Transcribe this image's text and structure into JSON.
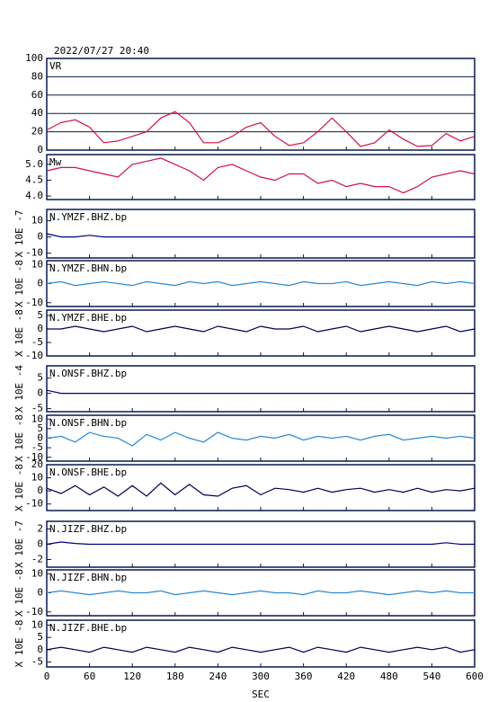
{
  "chart_data": [
    {
      "type": "line",
      "title": "2022/07/27 20:40",
      "label": "VR",
      "xlim": [
        0,
        600
      ],
      "ylim": [
        0,
        100
      ],
      "yticks": [
        0,
        20,
        40,
        60,
        80,
        100
      ],
      "grid": true,
      "color": "#d0104c",
      "x": [
        0,
        20,
        40,
        60,
        80,
        100,
        120,
        140,
        160,
        180,
        200,
        220,
        240,
        260,
        280,
        300,
        320,
        340,
        360,
        380,
        400,
        420,
        440,
        460,
        480,
        500,
        520,
        540,
        560,
        580,
        600
      ],
      "values": [
        22,
        30,
        33,
        25,
        8,
        10,
        15,
        20,
        35,
        42,
        30,
        8,
        8,
        15,
        25,
        30,
        15,
        5,
        8,
        20,
        35,
        20,
        4,
        8,
        22,
        12,
        4,
        5,
        18,
        10,
        15
      ]
    },
    {
      "type": "line",
      "label": "Mw",
      "xlim": [
        0,
        600
      ],
      "ylim": [
        3.89,
        5.31
      ],
      "yticks": [
        {
          "value": 4,
          "label": "4.0"
        },
        {
          "value": 4.5,
          "label": "4.5"
        },
        {
          "value": 5,
          "label": "5.0"
        }
      ],
      "grid": false,
      "color": "#d0104c",
      "x": [
        0,
        20,
        40,
        60,
        80,
        100,
        120,
        140,
        160,
        180,
        200,
        220,
        240,
        260,
        280,
        300,
        320,
        340,
        360,
        380,
        400,
        420,
        440,
        460,
        480,
        500,
        520,
        540,
        560,
        580,
        600
      ],
      "values": [
        4.8,
        4.9,
        4.9,
        4.8,
        4.7,
        4.6,
        5.0,
        5.1,
        5.2,
        5.0,
        4.8,
        4.5,
        4.9,
        5.0,
        4.8,
        4.6,
        4.5,
        4.7,
        4.7,
        4.4,
        4.5,
        4.3,
        4.4,
        4.3,
        4.3,
        4.1,
        4.3,
        4.6,
        4.7,
        4.8,
        4.7
      ]
    },
    {
      "type": "line",
      "label": "N.YMZF.BHZ.bp",
      "ylabel": "X 10E -7",
      "xlim": [
        0,
        600
      ],
      "ylim": [
        -13,
        17
      ],
      "yticks": [
        10,
        0,
        -10
      ],
      "grid": false,
      "color": "#000080",
      "x": [
        0,
        20,
        40,
        60,
        80,
        100,
        120,
        140,
        160,
        180,
        200,
        220,
        240,
        260,
        280,
        300,
        320,
        340,
        360,
        380,
        400,
        420,
        440,
        460,
        480,
        500,
        520,
        540,
        560,
        580,
        600
      ],
      "values": [
        2,
        0,
        0,
        1,
        0,
        0,
        0,
        0,
        0,
        0,
        0,
        0,
        0,
        0,
        0,
        0,
        0,
        0,
        0,
        0,
        0,
        0,
        0,
        0,
        0,
        0,
        0,
        0,
        0,
        0,
        0
      ]
    },
    {
      "type": "line",
      "label": "N.YMZF.BHN.bp",
      "ylabel": "X 10E -8",
      "xlim": [
        0,
        600
      ],
      "ylim": [
        -12,
        12
      ],
      "yticks": [
        10,
        0,
        -10
      ],
      "grid": false,
      "color": "#2a8ad4",
      "x": [
        0,
        20,
        40,
        60,
        80,
        100,
        120,
        140,
        160,
        180,
        200,
        220,
        240,
        260,
        280,
        300,
        320,
        340,
        360,
        380,
        400,
        420,
        440,
        460,
        480,
        500,
        520,
        540,
        560,
        580,
        600
      ],
      "values": [
        0,
        1,
        -1,
        0,
        1,
        0,
        -1,
        1,
        0,
        -1,
        1,
        0,
        1,
        -1,
        0,
        1,
        0,
        -1,
        1,
        0,
        0,
        1,
        -1,
        0,
        1,
        0,
        -1,
        1,
        0,
        1,
        0
      ]
    },
    {
      "type": "line",
      "label": "N.YMZF.BHE.bp",
      "ylabel": "X 10E -8",
      "xlim": [
        0,
        600
      ],
      "ylim": [
        -10,
        7
      ],
      "yticks": [
        5,
        0,
        -5,
        -10
      ],
      "grid": false,
      "color": "#000050",
      "x": [
        0,
        20,
        40,
        60,
        80,
        100,
        120,
        140,
        160,
        180,
        200,
        220,
        240,
        260,
        280,
        300,
        320,
        340,
        360,
        380,
        400,
        420,
        440,
        460,
        480,
        500,
        520,
        540,
        560,
        580,
        600
      ],
      "values": [
        0,
        0,
        1,
        0,
        -1,
        0,
        1,
        -1,
        0,
        1,
        0,
        -1,
        1,
        0,
        -1,
        1,
        0,
        0,
        1,
        -1,
        0,
        1,
        -1,
        0,
        1,
        0,
        -1,
        0,
        1,
        -1,
        0
      ]
    },
    {
      "type": "line",
      "label": "N.ONSF.BHZ.bp",
      "ylabel": "X 10E -4",
      "xlim": [
        0,
        600
      ],
      "ylim": [
        -6,
        9
      ],
      "yticks": [
        5,
        0,
        -5
      ],
      "grid": false,
      "color": "#000080",
      "x": [
        0,
        20,
        40,
        60,
        80,
        100,
        120,
        140,
        160,
        180,
        200,
        220,
        240,
        260,
        280,
        300,
        320,
        340,
        360,
        380,
        400,
        420,
        440,
        460,
        480,
        500,
        520,
        540,
        560,
        580,
        600
      ],
      "values": [
        1,
        0,
        0,
        0,
        0,
        0,
        0,
        0,
        0,
        0,
        0,
        0,
        0,
        0,
        0,
        0,
        0,
        0,
        0,
        0,
        0,
        0,
        0,
        0,
        0,
        0,
        0,
        0,
        0,
        0,
        0
      ]
    },
    {
      "type": "line",
      "label": "N.ONSF.BHN.bp",
      "ylabel": "X 10E -8",
      "xlim": [
        0,
        600
      ],
      "ylim": [
        -12,
        12
      ],
      "yticks": [
        10,
        5,
        0,
        -5,
        -10
      ],
      "grid": false,
      "color": "#2a8ad4",
      "x": [
        0,
        20,
        40,
        60,
        80,
        100,
        120,
        140,
        160,
        180,
        200,
        220,
        240,
        260,
        280,
        300,
        320,
        340,
        360,
        380,
        400,
        420,
        440,
        460,
        480,
        500,
        520,
        540,
        560,
        580,
        600
      ],
      "values": [
        0,
        1,
        -2,
        3,
        1,
        0,
        -4,
        2,
        -1,
        3,
        0,
        -2,
        3,
        0,
        -1,
        1,
        0,
        2,
        -1,
        1,
        0,
        1,
        -1,
        1,
        2,
        -1,
        0,
        1,
        0,
        1,
        0
      ]
    },
    {
      "type": "line",
      "label": "N.ONSF.BHE.bp",
      "ylabel": "X 10E -8",
      "xlim": [
        0,
        600
      ],
      "ylim": [
        -15,
        20
      ],
      "yticks": [
        20,
        10,
        0,
        -10
      ],
      "grid": false,
      "color": "#000050",
      "x": [
        0,
        20,
        40,
        60,
        80,
        100,
        120,
        140,
        160,
        180,
        200,
        220,
        240,
        260,
        280,
        300,
        320,
        340,
        360,
        380,
        400,
        420,
        440,
        460,
        480,
        500,
        520,
        540,
        560,
        580,
        600
      ],
      "values": [
        2,
        -2,
        4,
        -3,
        3,
        -4,
        4,
        -4,
        6,
        -3,
        5,
        -3,
        -4,
        2,
        4,
        -3,
        2,
        1,
        -1,
        2,
        -1,
        1,
        2,
        -1,
        1,
        -1,
        2,
        -1,
        1,
        0,
        2
      ]
    },
    {
      "type": "line",
      "label": "N.JIZF.BHZ.bp",
      "ylabel": "X 10E -7",
      "xlim": [
        0,
        600
      ],
      "ylim": [
        -3,
        3
      ],
      "yticks": [
        2,
        0,
        -2
      ],
      "grid": false,
      "color": "#000080",
      "x": [
        0,
        20,
        40,
        60,
        80,
        100,
        120,
        140,
        160,
        180,
        200,
        220,
        240,
        260,
        280,
        300,
        320,
        340,
        360,
        380,
        400,
        420,
        440,
        460,
        480,
        500,
        520,
        540,
        560,
        580,
        600
      ],
      "values": [
        0,
        0.3,
        0.1,
        0,
        0,
        0,
        0,
        0,
        0,
        0,
        0,
        0,
        0,
        0,
        0,
        0,
        0,
        0,
        0,
        0,
        0,
        0,
        0,
        0,
        0,
        0,
        0,
        0,
        0.2,
        0,
        0
      ]
    },
    {
      "type": "line",
      "label": "N.JIZF.BHN.bp",
      "ylabel": "X 10E -8",
      "xlim": [
        0,
        600
      ],
      "ylim": [
        -12,
        12
      ],
      "yticks": [
        10,
        0,
        -10
      ],
      "grid": false,
      "color": "#2a8ad4",
      "x": [
        0,
        20,
        40,
        60,
        80,
        100,
        120,
        140,
        160,
        180,
        200,
        220,
        240,
        260,
        280,
        300,
        320,
        340,
        360,
        380,
        400,
        420,
        440,
        460,
        480,
        500,
        520,
        540,
        560,
        580,
        600
      ],
      "values": [
        0,
        1,
        0,
        -1,
        0,
        1,
        0,
        0,
        1,
        -1,
        0,
        1,
        0,
        -1,
        0,
        1,
        0,
        0,
        -1,
        1,
        0,
        0,
        1,
        0,
        -1,
        0,
        1,
        0,
        1,
        0,
        0
      ]
    },
    {
      "type": "line",
      "label": "N.JIZF.BHE.bp",
      "ylabel": "X 10E -8",
      "xlabel": "SEC",
      "xlim": [
        0,
        600
      ],
      "ylim": [
        -7,
        12
      ],
      "yticks": [
        10,
        5,
        0,
        -5
      ],
      "xticks": [
        0,
        60,
        120,
        180,
        240,
        300,
        360,
        420,
        480,
        540,
        600
      ],
      "grid": false,
      "color": "#000050",
      "x": [
        0,
        20,
        40,
        60,
        80,
        100,
        120,
        140,
        160,
        180,
        200,
        220,
        240,
        260,
        280,
        300,
        320,
        340,
        360,
        380,
        400,
        420,
        440,
        460,
        480,
        500,
        520,
        540,
        560,
        580,
        600
      ],
      "values": [
        0,
        1,
        0,
        -1,
        1,
        0,
        -1,
        1,
        0,
        -1,
        1,
        0,
        -1,
        1,
        0,
        -1,
        0,
        1,
        -1,
        1,
        0,
        -1,
        1,
        0,
        -1,
        0,
        1,
        0,
        1,
        -1,
        0
      ]
    }
  ]
}
